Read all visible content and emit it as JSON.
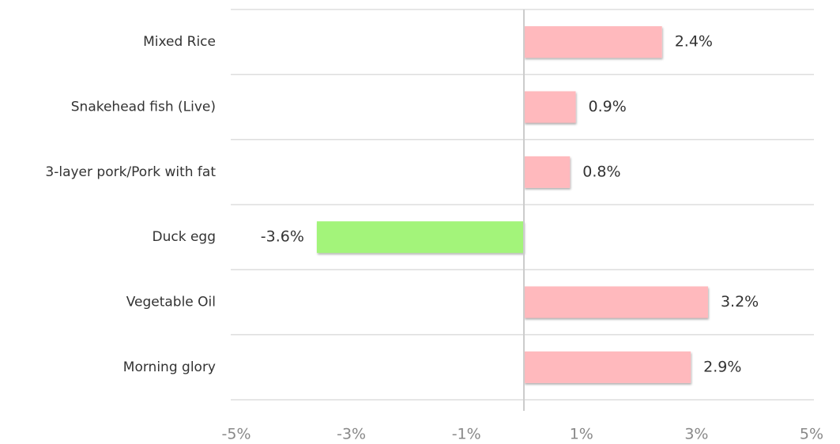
{
  "chart_data": {
    "type": "bar",
    "orientation": "horizontal",
    "categories": [
      "Mixed Rice",
      "Snakehead fish (Live)",
      "3-layer pork/Pork with fat",
      "Duck egg",
      "Vegetable Oil",
      "Morning glory"
    ],
    "values": [
      2.4,
      0.9,
      0.8,
      -3.6,
      3.2,
      2.9
    ],
    "value_labels": [
      "2.4%",
      "0.9%",
      "0.8%",
      "-3.6%",
      "3.2%",
      "2.9%"
    ],
    "colors": [
      "#ffb9bd",
      "#ffb9bd",
      "#ffb9bd",
      "#a3f47a",
      "#ffb9bd",
      "#ffb9bd"
    ],
    "xlim": [
      -5,
      5
    ],
    "xticks": [
      {
        "value": -5,
        "label": "-5%"
      },
      {
        "value": -3,
        "label": "-3%"
      },
      {
        "value": -1,
        "label": "-1%"
      },
      {
        "value": 1,
        "label": "1%"
      },
      {
        "value": 3,
        "label": "3%"
      },
      {
        "value": 5,
        "label": "5%"
      }
    ],
    "grid": false
  }
}
